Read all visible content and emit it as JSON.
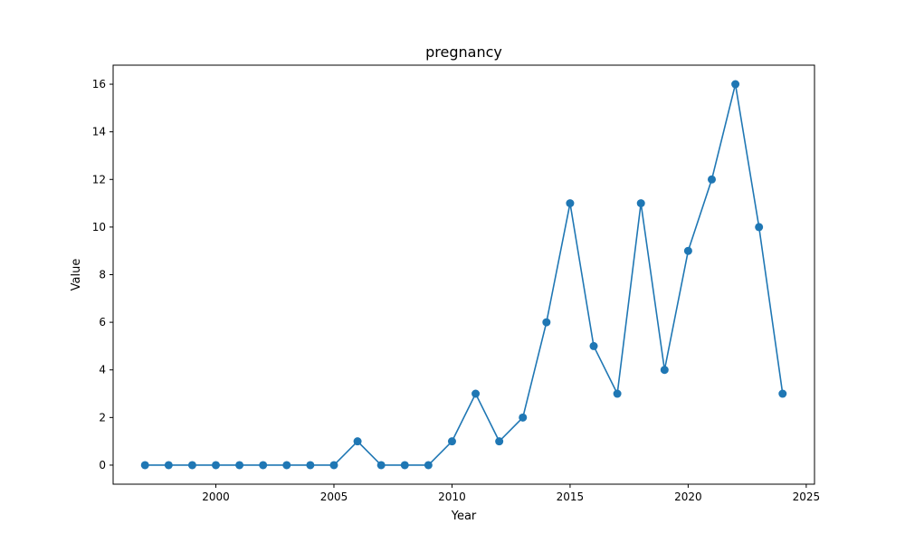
{
  "chart_data": {
    "type": "line",
    "title": "pregnancy",
    "xlabel": "Year",
    "ylabel": "Value",
    "xlim": [
      1995.65,
      2025.35
    ],
    "ylim": [
      -0.8,
      16.8
    ],
    "xticks": [
      2000,
      2005,
      2010,
      2015,
      2020,
      2025
    ],
    "yticks": [
      0,
      2,
      4,
      6,
      8,
      10,
      12,
      14,
      16
    ],
    "grid": false,
    "legend": "none",
    "series": [
      {
        "color": "#1f77b4",
        "x": [
          1997,
          1998,
          1999,
          2000,
          2001,
          2002,
          2003,
          2004,
          2005,
          2006,
          2007,
          2008,
          2009,
          2010,
          2011,
          2012,
          2013,
          2014,
          2015,
          2016,
          2017,
          2018,
          2019,
          2020,
          2021,
          2022,
          2023,
          2024
        ],
        "y": [
          0,
          0,
          0,
          0,
          0,
          0,
          0,
          0,
          0,
          1,
          0,
          0,
          0,
          1,
          3,
          1,
          2,
          6,
          11,
          5,
          3,
          11,
          4,
          9,
          12,
          16,
          10,
          3
        ]
      }
    ]
  }
}
